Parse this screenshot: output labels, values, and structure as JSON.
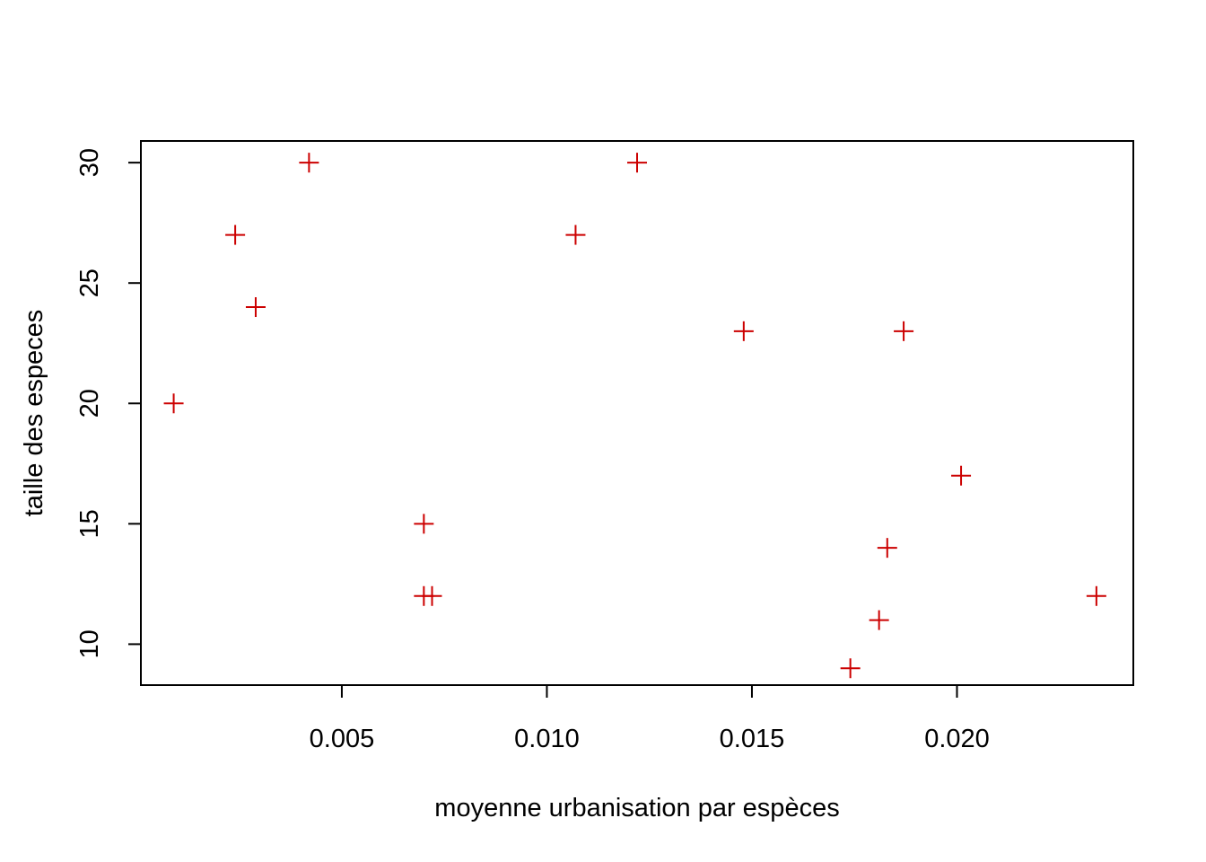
{
  "chart_data": {
    "type": "scatter",
    "title": "",
    "xlabel": "moyenne urbanisation par espèces",
    "ylabel": "taille des especes",
    "xlim": [
      0.0001,
      0.0243
    ],
    "ylim": [
      8.3,
      30.9
    ],
    "x_ticks": [
      {
        "value": 0.005,
        "label": "0.005"
      },
      {
        "value": 0.01,
        "label": "0.010"
      },
      {
        "value": 0.015,
        "label": "0.015"
      },
      {
        "value": 0.02,
        "label": "0.020"
      }
    ],
    "y_ticks": [
      {
        "value": 10,
        "label": "10"
      },
      {
        "value": 15,
        "label": "15"
      },
      {
        "value": 20,
        "label": "20"
      },
      {
        "value": 25,
        "label": "25"
      },
      {
        "value": 30,
        "label": "30"
      }
    ],
    "grid": false,
    "marker": "+",
    "marker_color": "#CC0000",
    "points": [
      {
        "x": 0.0009,
        "y": 20
      },
      {
        "x": 0.0024,
        "y": 27
      },
      {
        "x": 0.0029,
        "y": 24
      },
      {
        "x": 0.0042,
        "y": 30
      },
      {
        "x": 0.007,
        "y": 15
      },
      {
        "x": 0.007,
        "y": 12
      },
      {
        "x": 0.0072,
        "y": 12
      },
      {
        "x": 0.0107,
        "y": 27
      },
      {
        "x": 0.0122,
        "y": 30
      },
      {
        "x": 0.0148,
        "y": 23
      },
      {
        "x": 0.0174,
        "y": 9
      },
      {
        "x": 0.0181,
        "y": 11
      },
      {
        "x": 0.0183,
        "y": 14
      },
      {
        "x": 0.0187,
        "y": 23
      },
      {
        "x": 0.0201,
        "y": 17
      },
      {
        "x": 0.0234,
        "y": 12
      }
    ]
  }
}
